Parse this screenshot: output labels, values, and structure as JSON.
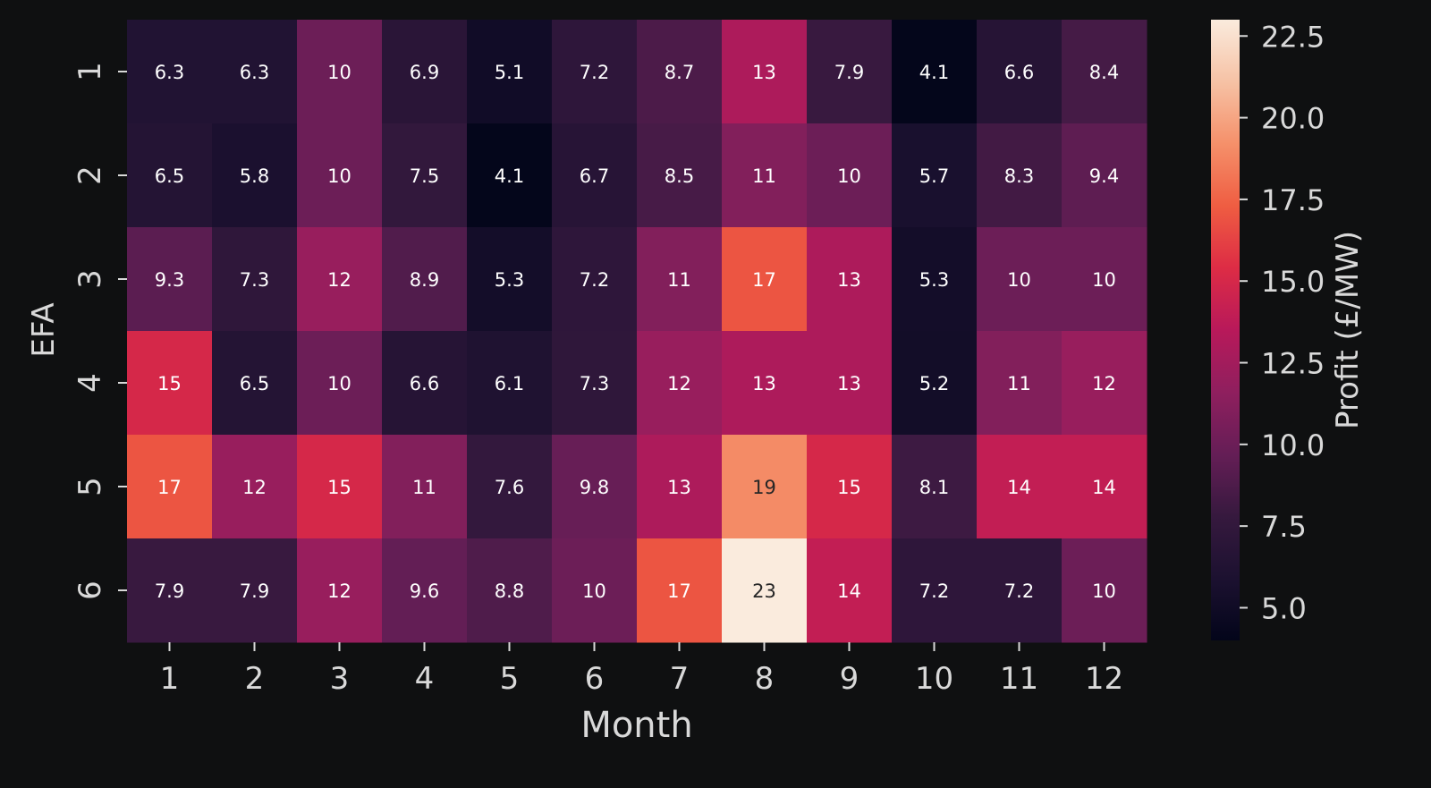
{
  "chart_data": {
    "type": "heatmap",
    "title": "",
    "xlabel": "Month",
    "ylabel": "EFA",
    "x_categories": [
      "1",
      "2",
      "3",
      "4",
      "5",
      "6",
      "7",
      "8",
      "9",
      "10",
      "11",
      "12"
    ],
    "y_categories": [
      "1",
      "2",
      "3",
      "4",
      "5",
      "6"
    ],
    "values": [
      [
        6.3,
        6.3,
        10,
        6.9,
        5.1,
        7.2,
        8.7,
        13,
        7.9,
        4.1,
        6.6,
        8.4
      ],
      [
        6.5,
        5.8,
        10,
        7.5,
        4.1,
        6.7,
        8.5,
        11,
        10,
        5.7,
        8.3,
        9.4
      ],
      [
        9.3,
        7.3,
        12,
        8.9,
        5.3,
        7.2,
        11,
        17,
        13,
        5.3,
        10,
        10
      ],
      [
        15,
        6.5,
        10,
        6.6,
        6.1,
        7.3,
        12,
        13,
        13,
        5.2,
        11,
        12
      ],
      [
        17,
        12,
        15,
        11,
        7.6,
        9.8,
        13,
        19,
        15,
        8.1,
        14,
        14
      ],
      [
        7.9,
        7.9,
        12,
        9.6,
        8.8,
        10,
        17,
        23,
        14,
        7.2,
        7.2,
        10
      ]
    ],
    "annotations": [
      [
        "6.3",
        "6.3",
        "10",
        "6.9",
        "5.1",
        "7.2",
        "8.7",
        "13",
        "7.9",
        "4.1",
        "6.6",
        "8.4"
      ],
      [
        "6.5",
        "5.8",
        "10",
        "7.5",
        "4.1",
        "6.7",
        "8.5",
        "11",
        "10",
        "5.7",
        "8.3",
        "9.4"
      ],
      [
        "9.3",
        "7.3",
        "12",
        "8.9",
        "5.3",
        "7.2",
        "11",
        "17",
        "13",
        "5.3",
        "10",
        "10"
      ],
      [
        "15",
        "6.5",
        "10",
        "6.6",
        "6.1",
        "7.3",
        "12",
        "13",
        "13",
        "5.2",
        "11",
        "12"
      ],
      [
        "17",
        "12",
        "15",
        "11",
        "7.6",
        "9.8",
        "13",
        "19",
        "15",
        "8.1",
        "14",
        "14"
      ],
      [
        "7.9",
        "7.9",
        "12",
        "9.6",
        "8.8",
        "10",
        "17",
        "23",
        "14",
        "7.2",
        "7.2",
        "10"
      ]
    ],
    "colorbar": {
      "label": "Profit (£/MW)",
      "range": [
        4.0,
        23.0
      ],
      "ticks": [
        "5.0",
        "7.5",
        "10.0",
        "12.5",
        "15.0",
        "17.5",
        "20.0",
        "22.5"
      ],
      "colormap": "rocket"
    },
    "colors": {
      "background": "#0f1011",
      "text": "#d9d9d9",
      "cell_text_light": "#ffffff",
      "cell_text_dark": "#262626"
    }
  }
}
